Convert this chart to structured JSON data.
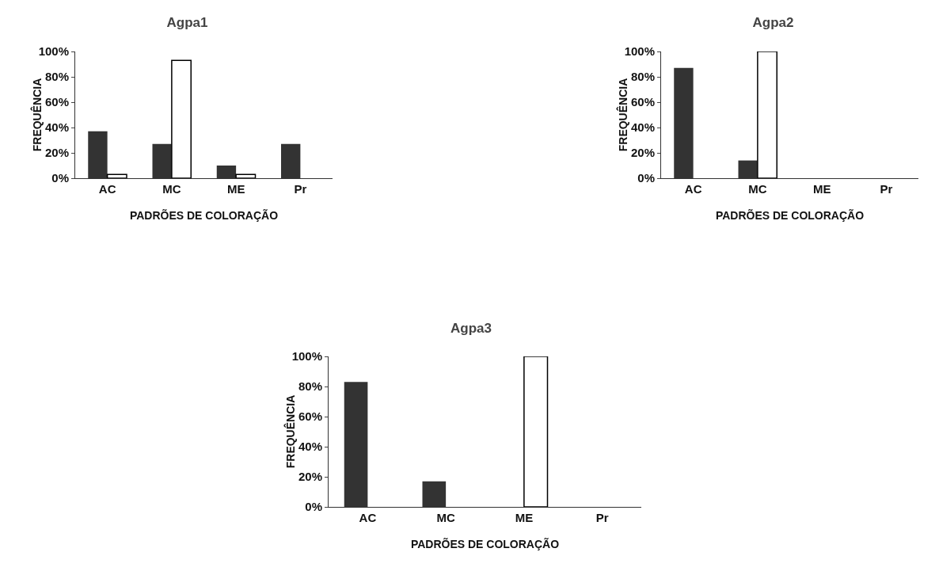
{
  "chart_data": [
    {
      "type": "bar",
      "title": "Agpa1",
      "xlabel": "PADRÕES DE COLORAÇÃO",
      "ylabel": "FREQUÊNCIA",
      "categories": [
        "AC",
        "MC",
        "ME",
        "Pr"
      ],
      "series": [
        {
          "color": "#333333",
          "values": [
            37,
            27,
            10,
            27
          ]
        },
        {
          "color": "#ffffff",
          "values": [
            3,
            93,
            3,
            0
          ]
        }
      ],
      "ylim": [
        0,
        100
      ],
      "yticks": [
        {
          "value": 0,
          "label": "0%"
        },
        {
          "value": 20,
          "label": "20%"
        },
        {
          "value": 40,
          "label": "40%"
        },
        {
          "value": 60,
          "label": "60%"
        },
        {
          "value": 80,
          "label": "80%"
        },
        {
          "value": 100,
          "label": "100%"
        }
      ],
      "grid": false
    },
    {
      "type": "bar",
      "title": "Agpa2",
      "xlabel": "PADRÕES DE COLORAÇÃO",
      "ylabel": "FREQUÊNCIA",
      "categories": [
        "AC",
        "MC",
        "ME",
        "Pr"
      ],
      "series": [
        {
          "color": "#333333",
          "values": [
            87,
            14,
            0,
            0
          ]
        },
        {
          "color": "#ffffff",
          "values": [
            0,
            100,
            0,
            0
          ]
        }
      ],
      "ylim": [
        0,
        100
      ],
      "yticks": [
        {
          "value": 0,
          "label": "0%"
        },
        {
          "value": 20,
          "label": "20%"
        },
        {
          "value": 40,
          "label": "40%"
        },
        {
          "value": 60,
          "label": "60%"
        },
        {
          "value": 80,
          "label": "80%"
        },
        {
          "value": 100,
          "label": "100%"
        }
      ],
      "grid": false
    },
    {
      "type": "bar",
      "title": "Agpa3",
      "xlabel": "PADRÕES DE COLORAÇÃO",
      "ylabel": "FREQUÊNCIA",
      "categories": [
        "AC",
        "MC",
        "ME",
        "Pr"
      ],
      "series": [
        {
          "color": "#333333",
          "values": [
            83,
            17,
            0,
            0
          ]
        },
        {
          "color": "#ffffff",
          "values": [
            0,
            0,
            100,
            0
          ]
        }
      ],
      "ylim": [
        0,
        100
      ],
      "yticks": [
        {
          "value": 0,
          "label": "0%"
        },
        {
          "value": 20,
          "label": "20%"
        },
        {
          "value": 40,
          "label": "40%"
        },
        {
          "value": 60,
          "label": "60%"
        },
        {
          "value": 80,
          "label": "80%"
        },
        {
          "value": 100,
          "label": "100%"
        }
      ],
      "grid": false
    }
  ]
}
